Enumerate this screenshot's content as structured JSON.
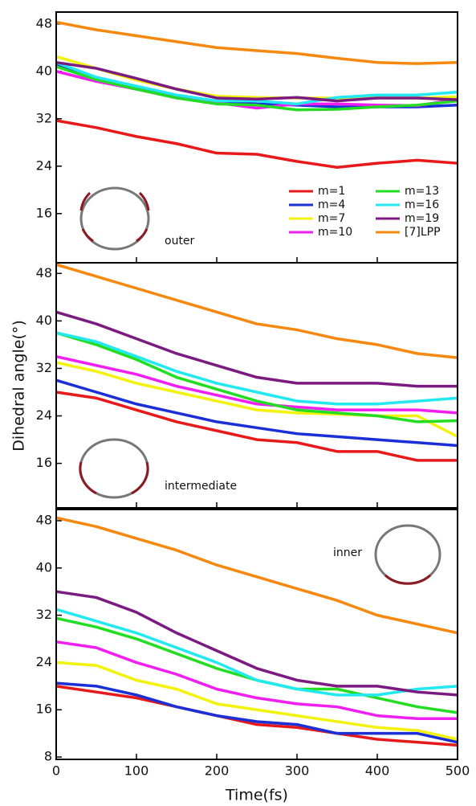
{
  "chart_data": [
    {
      "type": "line",
      "annotation": "outer",
      "legend": "lower right",
      "x": [
        0,
        50,
        100,
        150,
        200,
        250,
        300,
        350,
        400,
        450,
        500
      ],
      "xlim": [
        0,
        500
      ],
      "xticks": [
        0,
        100,
        200,
        300,
        400,
        500
      ],
      "ylim": [
        7.7,
        50
      ],
      "yticks": [
        16,
        24,
        32,
        40,
        48
      ],
      "series": [
        {
          "name": "m=1",
          "color": "#e8191a",
          "values": [
            31.7,
            30.5,
            29,
            27.8,
            26.2,
            26,
            24.8,
            23.8,
            24.5,
            25,
            24.5
          ]
        },
        {
          "name": "m=4",
          "color": "#1a2fd6",
          "values": [
            41,
            38.5,
            37,
            35.8,
            35,
            34.5,
            34.3,
            34,
            34,
            34,
            34.3
          ]
        },
        {
          "name": "m=7",
          "color": "#f2f20a",
          "values": [
            42.5,
            40.5,
            38.5,
            37,
            35.8,
            35.6,
            35.5,
            35.5,
            35.5,
            35.5,
            35.7
          ]
        },
        {
          "name": "m=10",
          "color": "#f01ef0",
          "values": [
            40,
            38.3,
            37,
            35.5,
            34.7,
            33.8,
            34.5,
            34.5,
            34.3,
            34.2,
            35.3
          ]
        },
        {
          "name": "m=13",
          "color": "#22dd22",
          "values": [
            40.8,
            38.6,
            37,
            35.5,
            34.5,
            34.3,
            33.5,
            33.6,
            34,
            34.3,
            35
          ]
        },
        {
          "name": "m=16",
          "color": "#22e8f0",
          "values": [
            41.5,
            39,
            37.5,
            36,
            35,
            35,
            34.5,
            35.6,
            36,
            36,
            36.5
          ]
        },
        {
          "name": "m=19",
          "color": "#7b1a80",
          "values": [
            41.5,
            40.5,
            38.8,
            37,
            35.5,
            35.3,
            35.6,
            35,
            35.5,
            35.5,
            35.2
          ]
        },
        {
          "name": "[7]LPP",
          "color": "#f5890f",
          "values": [
            48.3,
            47,
            46,
            45,
            44,
            43.5,
            43,
            42.2,
            41.5,
            41.3,
            41.5
          ]
        }
      ]
    },
    {
      "type": "line",
      "annotation": "intermediate",
      "ylabel": "Dihedral angle(°)",
      "x": [
        0,
        50,
        100,
        150,
        200,
        250,
        300,
        350,
        400,
        450,
        500
      ],
      "xlim": [
        0,
        500
      ],
      "xticks": [
        0,
        100,
        200,
        300,
        400,
        500
      ],
      "ylim": [
        8.5,
        49.8
      ],
      "yticks": [
        16,
        24,
        32,
        40,
        48
      ],
      "series": [
        {
          "color": "#e8191a",
          "values": [
            28,
            27,
            25,
            23,
            21.5,
            20,
            19.5,
            18,
            18,
            16.5,
            16.5
          ]
        },
        {
          "color": "#1a2fd6",
          "values": [
            30,
            28,
            26,
            24.5,
            23,
            22,
            21,
            20.5,
            20,
            19.5,
            19
          ]
        },
        {
          "color": "#f2f20a",
          "values": [
            33,
            31.5,
            29.5,
            28,
            26.5,
            25,
            24.5,
            24.3,
            24,
            24,
            20.5
          ]
        },
        {
          "color": "#f01ef0",
          "values": [
            34,
            32.5,
            31,
            29,
            27.5,
            26,
            25.5,
            25,
            25,
            25,
            24.5
          ]
        },
        {
          "color": "#22dd22",
          "values": [
            38,
            36,
            33.5,
            30.5,
            28.5,
            26.5,
            25,
            24.5,
            24,
            23,
            23.2
          ]
        },
        {
          "color": "#22e8f0",
          "values": [
            38,
            36.5,
            34,
            31.5,
            29.5,
            28,
            26.5,
            26,
            26,
            26.5,
            27
          ]
        },
        {
          "color": "#7b1a80",
          "values": [
            41.5,
            39.5,
            37,
            34.5,
            32.5,
            30.5,
            29.5,
            29.5,
            29.5,
            29,
            29
          ]
        },
        {
          "color": "#f5890f",
          "values": [
            49.5,
            47.5,
            45.5,
            43.5,
            41.5,
            39.5,
            38.5,
            37,
            36,
            34.5,
            33.8
          ]
        }
      ]
    },
    {
      "type": "line",
      "annotation": "inner",
      "xlabel": "Time(fs)",
      "x": [
        0,
        50,
        100,
        150,
        200,
        250,
        300,
        350,
        400,
        450,
        500
      ],
      "xlim": [
        0,
        500
      ],
      "xticks": [
        0,
        100,
        200,
        300,
        400,
        500
      ],
      "ylim": [
        7.6,
        49.9
      ],
      "yticks": [
        8,
        16,
        24,
        32,
        40,
        48
      ],
      "series": [
        {
          "color": "#e8191a",
          "values": [
            20,
            19,
            18,
            16.5,
            15,
            13.5,
            13,
            12,
            11,
            10.5,
            10
          ]
        },
        {
          "color": "#1a2fd6",
          "values": [
            20.5,
            20,
            18.5,
            16.5,
            15,
            14,
            13.5,
            12,
            12,
            12,
            10.5
          ]
        },
        {
          "color": "#f2f20a",
          "values": [
            24,
            23.5,
            21,
            19.5,
            17,
            16,
            15,
            14,
            13,
            12.5,
            11
          ]
        },
        {
          "color": "#f01ef0",
          "values": [
            27.5,
            26.5,
            24,
            22,
            19.5,
            18,
            17,
            16.5,
            15,
            14.5,
            14.5
          ]
        },
        {
          "color": "#22dd22",
          "values": [
            31.5,
            30,
            28,
            25.5,
            23,
            21,
            19.5,
            19.5,
            18,
            16.5,
            15.5
          ]
        },
        {
          "color": "#22e8f0",
          "values": [
            33,
            31,
            29,
            26.5,
            24,
            21,
            19.5,
            18.5,
            18.5,
            19.5,
            20
          ]
        },
        {
          "color": "#7b1a80",
          "values": [
            36,
            35,
            32.5,
            29,
            26,
            23,
            21,
            20,
            20,
            19,
            18.5
          ]
        },
        {
          "color": "#f5890f",
          "values": [
            48.5,
            47,
            45,
            43,
            40.5,
            38.5,
            36.5,
            34.5,
            32,
            30.5,
            29
          ]
        }
      ]
    }
  ]
}
